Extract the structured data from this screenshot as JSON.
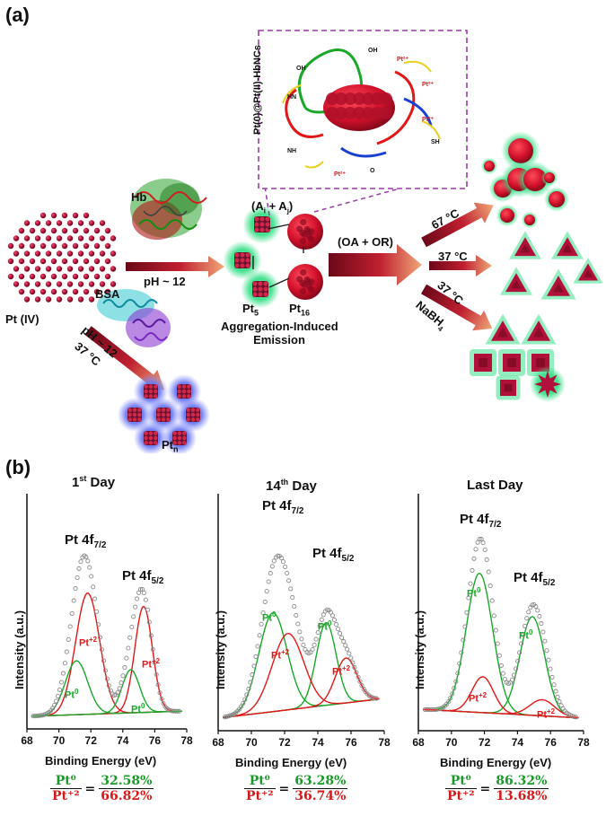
{
  "panel_a": {
    "label": "(a)",
    "pt_iv": "Pt (IV)",
    "hb": "Hb",
    "bsa": "BSA",
    "ph_top": "pH ~ 12",
    "ph_diag": "pH ~ 12",
    "temp_diag": "37 °C",
    "pt_n": "Pt",
    "pt_n_sub": "n",
    "pt5": "Pt",
    "pt5_sub": "5",
    "pt16": "Pt",
    "pt16_sub": "16",
    "ai_aj": "(A",
    "ai_sub": "i",
    "ai_plus": " + A",
    "aj_sub": "j",
    "ai_close": ")",
    "aie_line1": "Aggregation-Induced",
    "aie_line2": "Emission",
    "oa_or": "(OA + OR)",
    "t67": "67 °C",
    "t37": "37 °C",
    "t37b": "37 °C",
    "nabh4": "NaBH",
    "nabh4_sub": "4",
    "inset_title": "Pt(0)@Pt(II)-HbNCs",
    "inset_labels": [
      "Pt²⁺",
      "Pt²⁺",
      "Pt²⁺",
      "Pt²⁺",
      "OH",
      "OH",
      "HN",
      "SH",
      "NH",
      "O"
    ]
  },
  "panel_b": {
    "label": "(b)",
    "y_axis": "Intensity (a.u.)",
    "x_axis": "Binding Energy (eV)",
    "x_ticks": [
      "68",
      "70",
      "72",
      "74",
      "76",
      "78"
    ],
    "peak1": "Pt 4f",
    "peak1_sub": "7/2",
    "peak2": "Pt 4f",
    "peak2_sub": "5/2",
    "pt0": "Pt",
    "pt0_sup": "0",
    "pt2": "Pt",
    "pt2_sup": "+2",
    "spectra": [
      {
        "title": "1",
        "title_sup": "st",
        "title_rest": " Day",
        "ratio_num": "Pt⁰",
        "ratio_den": "Pt⁺²",
        "pct_num": "32.58%",
        "pct_den": "66.82%"
      },
      {
        "title": "14",
        "title_sup": "th",
        "title_rest": " Day",
        "ratio_num": "Pt⁰",
        "ratio_den": "Pt⁺²",
        "pct_num": "63.28%",
        "pct_den": "36.74%"
      },
      {
        "title": "Last Day",
        "title_sup": "",
        "title_rest": "",
        "ratio_num": "Pt⁰",
        "ratio_den": "Pt⁺²",
        "pct_num": "86.32%",
        "pct_den": "13.68%"
      }
    ]
  },
  "colors": {
    "nanocluster": "#b0103a",
    "glow_green": "#3ce08a",
    "glow_blue": "#6a78f0",
    "arrow_dark": "#8a1020",
    "arrow_light": "#e8a070",
    "inset_border": "#9b3aa8",
    "envelope": "#909090",
    "fit_red": "#e01818",
    "fit_green": "#1aa82a"
  },
  "chart_data": [
    {
      "type": "line",
      "title": "1st Day",
      "xlabel": "Binding Energy (eV)",
      "ylabel": "Intensity (a.u.)",
      "xlim": [
        68,
        78
      ],
      "x_reversed": false,
      "series": [
        {
          "name": "Pt+2",
          "peaks_eV": [
            71.8,
            75.3
          ]
        },
        {
          "name": "Pt0",
          "peaks_eV": [
            71.1,
            74.5
          ]
        }
      ],
      "ratio": {
        "Pt0": "32.58%",
        "Pt+2": "66.82%"
      }
    },
    {
      "type": "line",
      "title": "14th Day",
      "xlabel": "Binding Energy (eV)",
      "ylabel": "Intensity (a.u.)",
      "xlim": [
        68,
        78
      ],
      "x_reversed": false,
      "series": [
        {
          "name": "Pt0",
          "peaks_eV": [
            71.3,
            74.5
          ]
        },
        {
          "name": "Pt+2",
          "peaks_eV": [
            72.2,
            75.7
          ]
        }
      ],
      "ratio": {
        "Pt0": "63.28%",
        "Pt+2": "36.74%"
      }
    },
    {
      "type": "line",
      "title": "Last Day",
      "xlabel": "Binding Energy (eV)",
      "ylabel": "Intensity (a.u.)",
      "xlim": [
        68,
        78
      ],
      "x_reversed": false,
      "series": [
        {
          "name": "Pt0",
          "peaks_eV": [
            71.7,
            74.9
          ]
        },
        {
          "name": "Pt+2",
          "peaks_eV": [
            71.9,
            75.5
          ]
        }
      ],
      "ratio": {
        "Pt0": "86.32%",
        "Pt+2": "13.68%"
      }
    }
  ]
}
